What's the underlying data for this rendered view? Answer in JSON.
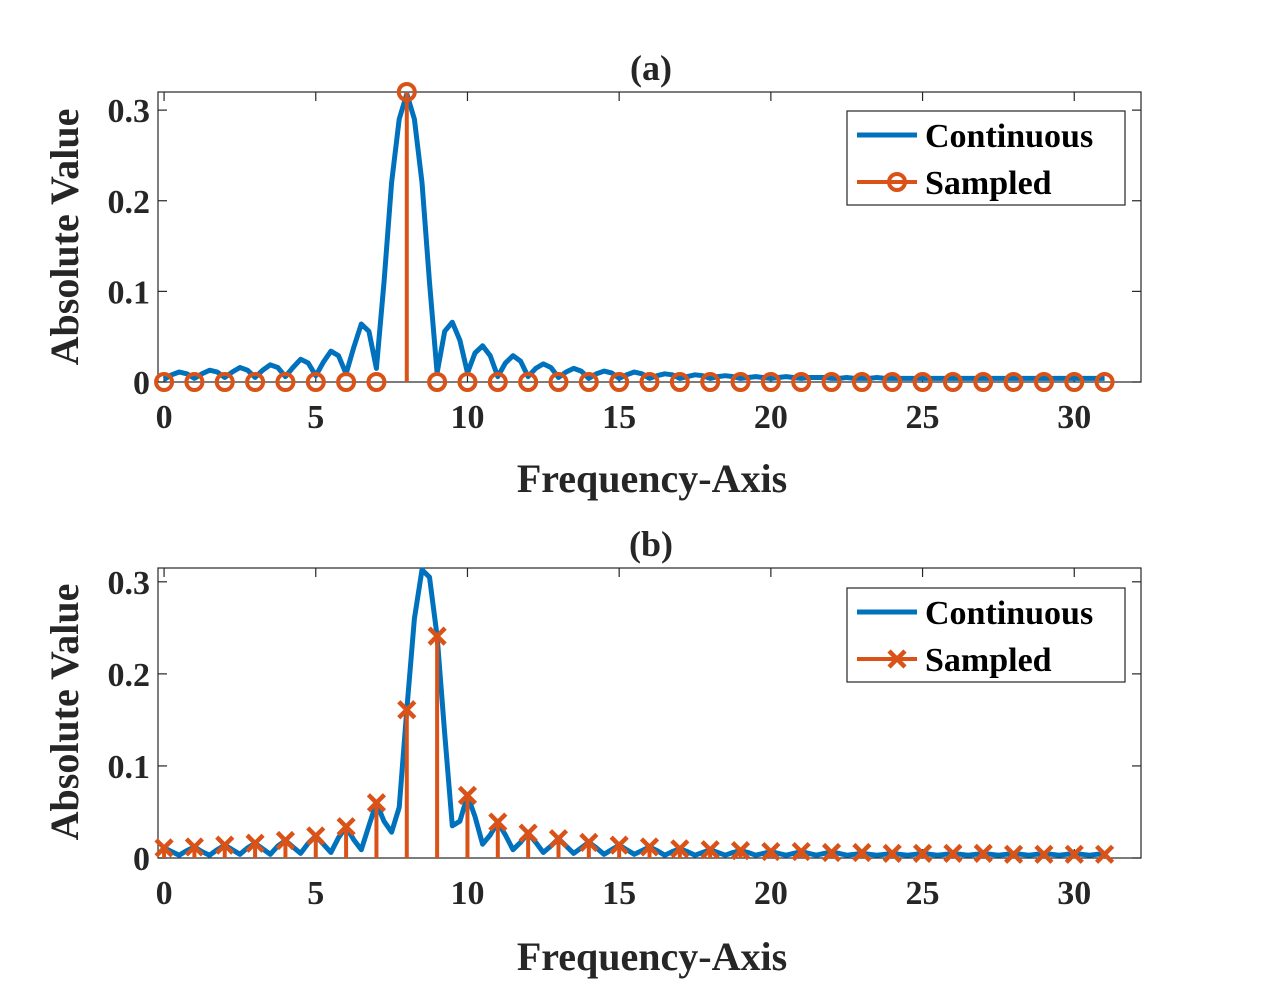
{
  "colors": {
    "continuous": "#0072BD",
    "sampled": "#D95319",
    "axis": "#262626"
  },
  "chart_data": [
    {
      "id": "a",
      "type": "line",
      "title": "(a)",
      "xlabel": "Frequency-Axis",
      "ylabel": "Absolute Value",
      "xlim": [
        -0.2,
        32.2
      ],
      "ylim": [
        0,
        0.32
      ],
      "xticks": [
        0,
        5,
        10,
        15,
        20,
        25,
        30
      ],
      "xtick_labels": [
        "0",
        "5",
        "10",
        "15",
        "20",
        "25",
        "30"
      ],
      "yticks": [
        0,
        0.1,
        0.2,
        0.3
      ],
      "ytick_labels": [
        "0",
        "0.1",
        "0.2",
        "0.3"
      ],
      "legend": {
        "position": "top-right",
        "entries": [
          "Continuous",
          "Sampled"
        ],
        "markers": [
          "line",
          "circle"
        ]
      },
      "series": [
        {
          "name": "Continuous",
          "kind": "line",
          "model": "|sinc| envelope around frequency 8, sampled every 0.25",
          "x": [
            0,
            0.25,
            0.5,
            0.75,
            1,
            1.25,
            1.5,
            1.75,
            2,
            2.25,
            2.5,
            2.75,
            3,
            3.25,
            3.5,
            3.75,
            4,
            4.25,
            4.5,
            4.75,
            5,
            5.25,
            5.5,
            5.75,
            6,
            6.25,
            6.5,
            6.75,
            7,
            7.25,
            7.5,
            7.75,
            8,
            8.25,
            8.5,
            8.75,
            9,
            9.25,
            9.5,
            9.75,
            10,
            10.25,
            10.5,
            10.75,
            11,
            11.25,
            11.5,
            11.75,
            12,
            12.25,
            12.5,
            12.75,
            13,
            13.25,
            13.5,
            13.75,
            14,
            14.25,
            14.5,
            14.75,
            15,
            15.25,
            15.5,
            15.75,
            16,
            16.25,
            16.5,
            16.75,
            17,
            17.25,
            17.5,
            17.75,
            18,
            18.25,
            18.5,
            18.75,
            19,
            19.25,
            19.5,
            19.75,
            20,
            20.25,
            20.5,
            20.75,
            21,
            21.25,
            21.5,
            21.75,
            22,
            22.25,
            22.5,
            22.75,
            23,
            23.25,
            23.5,
            23.75,
            24,
            24.25,
            24.5,
            24.75,
            25,
            25.25,
            25.5,
            25.75,
            26,
            26.25,
            26.5,
            26.75,
            27,
            27.25,
            27.5,
            27.75,
            28,
            28.25,
            28.5,
            28.75,
            29,
            29.25,
            29.5,
            29.75,
            30,
            30.25,
            30.5,
            30.75,
            31
          ],
          "y": [
            0.003,
            0.008,
            0.011,
            0.009,
            0.004,
            0.009,
            0.013,
            0.011,
            0.005,
            0.011,
            0.016,
            0.013,
            0.005,
            0.013,
            0.019,
            0.016,
            0.006,
            0.016,
            0.025,
            0.021,
            0.007,
            0.022,
            0.034,
            0.029,
            0.009,
            0.038,
            0.064,
            0.056,
            0.015,
            0.11,
            0.22,
            0.29,
            0.318,
            0.29,
            0.22,
            0.11,
            0.01,
            0.056,
            0.066,
            0.046,
            0.01,
            0.032,
            0.04,
            0.029,
            0.006,
            0.021,
            0.029,
            0.023,
            0.006,
            0.015,
            0.02,
            0.016,
            0.005,
            0.011,
            0.015,
            0.012,
            0.004,
            0.009,
            0.012,
            0.01,
            0.004,
            0.008,
            0.011,
            0.009,
            0.004,
            0.007,
            0.009,
            0.008,
            0.004,
            0.006,
            0.008,
            0.007,
            0.004,
            0.006,
            0.007,
            0.006,
            0.004,
            0.005,
            0.006,
            0.005,
            0.004,
            0.005,
            0.006,
            0.005,
            0.004,
            0.005,
            0.005,
            0.005,
            0.004,
            0.004,
            0.005,
            0.004,
            0.004,
            0.004,
            0.005,
            0.004,
            0.004,
            0.004,
            0.004,
            0.004,
            0.004,
            0.004,
            0.004,
            0.004,
            0.004,
            0.004,
            0.004,
            0.004,
            0.004,
            0.004,
            0.004,
            0.004,
            0.004,
            0.004,
            0.004,
            0.004,
            0.004,
            0.004,
            0.004,
            0.004,
            0.004,
            0.004,
            0.004,
            0.004,
            0.004
          ]
        },
        {
          "name": "Sampled",
          "kind": "stem",
          "marker": "circle",
          "x": [
            0,
            1,
            2,
            3,
            4,
            5,
            6,
            7,
            8,
            9,
            10,
            11,
            12,
            13,
            14,
            15,
            16,
            17,
            18,
            19,
            20,
            21,
            22,
            23,
            24,
            25,
            26,
            27,
            28,
            29,
            30,
            31
          ],
          "y": [
            0,
            0,
            0,
            0,
            0,
            0,
            0,
            0,
            0.32,
            0,
            0,
            0,
            0,
            0,
            0,
            0,
            0,
            0,
            0,
            0,
            0,
            0,
            0,
            0,
            0,
            0,
            0,
            0,
            0,
            0,
            0,
            0
          ]
        }
      ]
    },
    {
      "id": "b",
      "type": "line",
      "title": "(b)",
      "xlabel": "Frequency-Axis",
      "ylabel": "Absolute Value",
      "xlim": [
        -0.2,
        32.2
      ],
      "ylim": [
        0,
        0.315
      ],
      "xticks": [
        0,
        5,
        10,
        15,
        20,
        25,
        30
      ],
      "xtick_labels": [
        "0",
        "5",
        "10",
        "15",
        "20",
        "25",
        "30"
      ],
      "yticks": [
        0,
        0.1,
        0.2,
        0.3
      ],
      "ytick_labels": [
        "0",
        "0.1",
        "0.2",
        "0.3"
      ],
      "legend": {
        "position": "top-right",
        "entries": [
          "Continuous",
          "Sampled"
        ],
        "markers": [
          "line",
          "cross"
        ]
      },
      "series": [
        {
          "name": "Continuous",
          "kind": "line",
          "model": "|sinc| envelope around frequency 8.5, sampled every 0.25",
          "x": [
            0,
            0.25,
            0.5,
            0.75,
            1,
            1.25,
            1.5,
            1.75,
            2,
            2.25,
            2.5,
            2.75,
            3,
            3.25,
            3.5,
            3.75,
            4,
            4.25,
            4.5,
            4.75,
            5,
            5.25,
            5.5,
            5.75,
            6,
            6.25,
            6.5,
            6.75,
            7,
            7.25,
            7.5,
            7.75,
            8,
            8.25,
            8.5,
            8.75,
            9,
            9.25,
            9.5,
            9.75,
            10,
            10.25,
            10.5,
            10.75,
            11,
            11.25,
            11.5,
            11.75,
            12,
            12.25,
            12.5,
            12.75,
            13,
            13.25,
            13.5,
            13.75,
            14,
            14.25,
            14.5,
            14.75,
            15,
            15.25,
            15.5,
            15.75,
            16,
            16.25,
            16.5,
            16.75,
            17,
            17.25,
            17.5,
            17.75,
            18,
            18.25,
            18.5,
            18.75,
            19,
            19.25,
            19.5,
            19.75,
            20,
            20.25,
            20.5,
            20.75,
            21,
            21.25,
            21.5,
            21.75,
            22,
            22.25,
            22.5,
            22.75,
            23,
            23.25,
            23.5,
            23.75,
            24,
            24.25,
            24.5,
            24.75,
            25,
            25.25,
            25.5,
            25.75,
            26,
            26.25,
            26.5,
            26.75,
            27,
            27.25,
            27.5,
            27.75,
            28,
            28.25,
            28.5,
            28.75,
            29,
            29.25,
            29.5,
            29.75,
            30,
            30.25,
            30.5,
            30.75,
            31
          ],
          "y": [
            0.011,
            0.007,
            0.003,
            0.008,
            0.012,
            0.007,
            0.003,
            0.009,
            0.014,
            0.009,
            0.004,
            0.011,
            0.016,
            0.01,
            0.004,
            0.013,
            0.019,
            0.012,
            0.005,
            0.016,
            0.024,
            0.015,
            0.006,
            0.022,
            0.034,
            0.02,
            0.009,
            0.035,
            0.06,
            0.04,
            0.028,
            0.055,
            0.161,
            0.26,
            0.313,
            0.305,
            0.241,
            0.135,
            0.035,
            0.04,
            0.068,
            0.045,
            0.015,
            0.025,
            0.039,
            0.025,
            0.009,
            0.017,
            0.027,
            0.017,
            0.006,
            0.013,
            0.021,
            0.013,
            0.005,
            0.011,
            0.017,
            0.011,
            0.004,
            0.009,
            0.014,
            0.009,
            0.004,
            0.008,
            0.012,
            0.008,
            0.003,
            0.007,
            0.01,
            0.007,
            0.003,
            0.006,
            0.009,
            0.006,
            0.003,
            0.006,
            0.008,
            0.006,
            0.003,
            0.005,
            0.007,
            0.005,
            0.003,
            0.005,
            0.007,
            0.005,
            0.003,
            0.005,
            0.006,
            0.005,
            0.003,
            0.004,
            0.005,
            0.004,
            0.003,
            0.004,
            0.005,
            0.004,
            0.003,
            0.004,
            0.005,
            0.004,
            0.003,
            0.004,
            0.004,
            0.004,
            0.003,
            0.004,
            0.004,
            0.004,
            0.003,
            0.004,
            0.004,
            0.004,
            0.003,
            0.004,
            0.004,
            0.004,
            0.003,
            0.004,
            0.004,
            0.004,
            0.003,
            0.004,
            0.004
          ]
        },
        {
          "name": "Sampled",
          "kind": "stem",
          "marker": "cross",
          "x": [
            0,
            1,
            2,
            3,
            4,
            5,
            6,
            7,
            8,
            9,
            10,
            11,
            12,
            13,
            14,
            15,
            16,
            17,
            18,
            19,
            20,
            21,
            22,
            23,
            24,
            25,
            26,
            27,
            28,
            29,
            30,
            31
          ],
          "y": [
            0.011,
            0.012,
            0.014,
            0.016,
            0.019,
            0.024,
            0.034,
            0.06,
            0.161,
            0.241,
            0.068,
            0.039,
            0.027,
            0.021,
            0.017,
            0.014,
            0.012,
            0.01,
            0.009,
            0.008,
            0.007,
            0.007,
            0.006,
            0.006,
            0.005,
            0.005,
            0.005,
            0.005,
            0.004,
            0.004,
            0.004,
            0.004
          ]
        }
      ]
    }
  ]
}
